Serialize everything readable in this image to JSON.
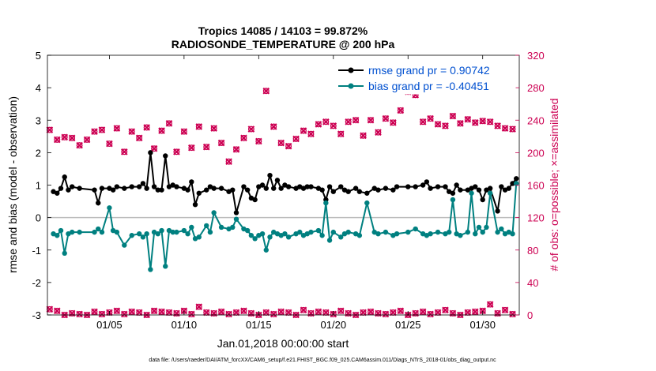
{
  "chart_data": {
    "type": "line",
    "title_line1": "Tropics 14085 / 14103 = 99.872%",
    "title_line2": "RADIOSONDE_TEMPERATURE @ 200 hPa",
    "xlabel": "Jan.01,2018 00:00:00 start",
    "ylabel_left": "rmse and bias (model - observation)",
    "ylabel_right": "# of obs: o=possible; ×=assimilated",
    "footnote": "data file: /Users/raeder/DAI/ATM_forcXX/CAM6_setup/f.e21.FHIST_BGC.f09_025.CAM6assim.011/Diags_NTrS_2018-01/obs_diag_output.nc",
    "xlim": [
      0.6,
      32.2
    ],
    "ylim_left": [
      -3,
      5
    ],
    "ylim_right": [
      0,
      320
    ],
    "x_ticks": [
      4.75,
      9.75,
      14.75,
      19.75,
      24.75,
      29.75
    ],
    "x_tick_labels": [
      "01/05",
      "01/10",
      "01/15",
      "01/20",
      "01/25",
      "01/30"
    ],
    "y_ticks_left": [
      -3,
      -2,
      -1,
      0,
      1,
      2,
      3,
      4,
      5
    ],
    "y_tick_labels_left": [
      "-3",
      "-2",
      "-1",
      "0",
      "1",
      "2",
      "3",
      "4",
      "5"
    ],
    "y_ticks_right": [
      0,
      40,
      80,
      120,
      160,
      200,
      240,
      280,
      320
    ],
    "y_tick_labels_right": [
      "0",
      "40",
      "80",
      "120",
      "160",
      "200",
      "240",
      "280",
      "320"
    ],
    "colors": {
      "rmse": "#000000",
      "bias": "#008080",
      "obs": "#cc0052",
      "zero_line": "#bbbbbb",
      "legend_text": "#0050d0"
    },
    "legend": [
      "rmse grand pr = 0.90742",
      "bias grand pr = -0.40451"
    ],
    "series": [
      {
        "name": "rmse grand pr = 0.90742",
        "x": [
          1.0,
          1.25,
          1.5,
          1.75,
          2.0,
          2.25,
          2.75,
          3.75,
          4.0,
          4.25,
          4.75,
          5.0,
          5.25,
          5.75,
          6.25,
          6.75,
          7.0,
          7.25,
          7.5,
          7.75,
          8.0,
          8.25,
          8.5,
          8.75,
          9.0,
          9.25,
          9.75,
          10.0,
          10.25,
          10.5,
          10.75,
          11.25,
          11.5,
          11.75,
          12.25,
          12.75,
          13.0,
          13.25,
          13.75,
          14.0,
          14.25,
          14.5,
          14.75,
          15.0,
          15.25,
          15.5,
          15.75,
          16.0,
          16.25,
          16.5,
          16.75,
          17.25,
          17.5,
          17.75,
          18.0,
          18.25,
          18.75,
          19.0,
          19.25,
          19.5,
          19.75,
          20.25,
          20.5,
          20.75,
          21.25,
          21.5,
          22.0,
          22.5,
          22.75,
          23.25,
          23.75,
          24.0,
          24.75,
          25.25,
          25.75,
          26.0,
          26.25,
          26.75,
          27.25,
          27.5,
          27.75,
          28.0,
          28.25,
          28.75,
          29.0,
          29.25,
          29.5,
          29.75,
          30.0,
          30.25,
          30.75,
          31.0,
          31.25,
          31.5,
          31.75,
          32.0
        ],
        "values": [
          0.8,
          0.75,
          0.9,
          1.25,
          0.85,
          0.95,
          0.9,
          0.85,
          0.45,
          0.9,
          0.9,
          0.85,
          0.95,
          0.9,
          0.95,
          0.95,
          1.05,
          0.9,
          2.0,
          0.95,
          0.85,
          0.85,
          1.9,
          0.95,
          1.0,
          0.95,
          0.9,
          0.85,
          1.1,
          0.4,
          0.75,
          0.85,
          0.95,
          0.9,
          0.9,
          0.8,
          0.85,
          0.15,
          0.95,
          0.85,
          0.6,
          0.55,
          0.95,
          1.0,
          0.9,
          1.3,
          0.9,
          1.15,
          0.9,
          1.0,
          0.95,
          0.9,
          0.95,
          0.9,
          0.95,
          0.95,
          0.9,
          0.85,
          0.55,
          0.95,
          0.8,
          0.95,
          0.85,
          0.8,
          0.9,
          0.8,
          0.75,
          0.9,
          0.85,
          0.9,
          0.85,
          0.95,
          0.95,
          0.95,
          1.0,
          1.1,
          0.9,
          0.95,
          0.95,
          0.8,
          0.75,
          1.0,
          0.85,
          0.85,
          0.9,
          0.95,
          0.85,
          0.55,
          0.85,
          0.9,
          0.2,
          0.95,
          0.85,
          0.9,
          1.05,
          1.2
        ]
      },
      {
        "name": "bias grand pr = -0.40451",
        "x": [
          1.0,
          1.25,
          1.5,
          1.75,
          2.0,
          2.25,
          2.75,
          3.75,
          4.0,
          4.25,
          4.75,
          5.0,
          5.25,
          5.75,
          6.25,
          6.75,
          7.0,
          7.25,
          7.5,
          7.75,
          8.0,
          8.25,
          8.5,
          8.75,
          9.0,
          9.25,
          9.75,
          10.0,
          10.25,
          10.5,
          10.75,
          11.25,
          11.5,
          11.75,
          12.25,
          12.75,
          13.0,
          13.25,
          13.75,
          14.0,
          14.25,
          14.5,
          14.75,
          15.0,
          15.25,
          15.5,
          15.75,
          16.0,
          16.25,
          16.5,
          16.75,
          17.25,
          17.5,
          17.75,
          18.0,
          18.25,
          18.75,
          19.0,
          19.25,
          19.5,
          19.75,
          20.25,
          20.5,
          20.75,
          21.25,
          21.5,
          22.0,
          22.5,
          22.75,
          23.25,
          23.75,
          24.0,
          24.75,
          25.25,
          25.75,
          26.0,
          26.25,
          26.75,
          27.25,
          27.5,
          27.75,
          28.0,
          28.25,
          28.75,
          29.0,
          29.25,
          29.5,
          29.75,
          30.0,
          30.25,
          30.75,
          31.0,
          31.25,
          31.5,
          31.75,
          32.0
        ],
        "values": [
          -0.5,
          -0.55,
          -0.4,
          -1.1,
          -0.5,
          -0.45,
          -0.45,
          -0.45,
          -0.35,
          -0.45,
          0.3,
          -0.4,
          -0.45,
          -0.85,
          -0.55,
          -0.5,
          -0.6,
          -0.5,
          -1.6,
          -0.45,
          -0.5,
          -0.4,
          -1.5,
          -0.4,
          -0.45,
          -0.45,
          -0.4,
          -0.5,
          -0.3,
          -0.65,
          -0.6,
          -0.25,
          -0.45,
          0.15,
          -0.3,
          -0.35,
          -0.3,
          -0.05,
          -0.35,
          -0.4,
          -0.55,
          -0.65,
          -0.55,
          -0.5,
          -1.0,
          -0.6,
          -0.45,
          -0.5,
          -0.55,
          -0.5,
          -0.6,
          -0.5,
          -0.45,
          -0.55,
          -0.5,
          -0.45,
          -0.4,
          -0.55,
          0.45,
          -0.7,
          -0.45,
          -0.6,
          -0.5,
          -0.45,
          -0.5,
          -0.55,
          0.45,
          -0.45,
          -0.5,
          -0.45,
          -0.55,
          -0.5,
          -0.45,
          -0.35,
          -0.5,
          -0.55,
          -0.5,
          -0.45,
          -0.5,
          -0.45,
          0.55,
          -0.5,
          -0.55,
          -0.45,
          0.75,
          -0.5,
          -0.3,
          -0.45,
          -0.3,
          0.75,
          -0.45,
          -0.35,
          -0.5,
          -0.45,
          -0.5,
          1.05
        ]
      },
      {
        "name": "obs possible / assimilated (upper row)",
        "x": [
          0.75,
          1.25,
          1.75,
          2.25,
          2.75,
          3.25,
          3.75,
          4.25,
          4.75,
          5.25,
          5.75,
          6.25,
          6.75,
          7.25,
          7.75,
          8.25,
          8.75,
          9.25,
          9.75,
          10.25,
          10.75,
          11.25,
          11.75,
          12.25,
          12.75,
          13.25,
          13.75,
          14.25,
          14.75,
          15.25,
          15.75,
          16.25,
          16.75,
          17.25,
          17.75,
          18.25,
          18.75,
          19.25,
          19.75,
          20.25,
          20.75,
          21.25,
          21.75,
          22.25,
          22.75,
          23.25,
          23.75,
          24.25,
          24.75,
          25.25,
          25.75,
          26.25,
          26.75,
          27.25,
          27.75,
          28.25,
          28.75,
          29.25,
          29.75,
          30.25,
          30.75,
          31.25,
          31.75
        ],
        "values": [
          228,
          216,
          219,
          218,
          209,
          216,
          226,
          228,
          211,
          230,
          201,
          226,
          218,
          231,
          205,
          227,
          236,
          201,
          226,
          206,
          232,
          207,
          230,
          212,
          189,
          204,
          218,
          229,
          214,
          276,
          232,
          212,
          208,
          217,
          227,
          223,
          235,
          238,
          233,
          223,
          238,
          240,
          221,
          240,
          225,
          242,
          237,
          252,
          275,
          271,
          238,
          242,
          235,
          233,
          245,
          236,
          241,
          237,
          239,
          238,
          233,
          230,
          229
        ]
      },
      {
        "name": "obs possible / assimilated (lower row)",
        "x": [
          0.75,
          1.25,
          1.75,
          2.25,
          2.75,
          3.25,
          3.75,
          4.25,
          4.75,
          5.25,
          5.75,
          6.25,
          6.75,
          7.25,
          7.75,
          8.25,
          8.75,
          9.25,
          9.75,
          10.25,
          10.75,
          11.25,
          11.75,
          12.25,
          12.75,
          13.25,
          13.75,
          14.25,
          14.75,
          15.25,
          15.75,
          16.25,
          16.75,
          17.25,
          17.75,
          18.25,
          18.75,
          19.25,
          19.75,
          20.25,
          20.75,
          21.25,
          21.75,
          22.25,
          22.75,
          23.25,
          23.75,
          24.25,
          24.75,
          25.25,
          25.75,
          26.25,
          26.75,
          27.25,
          27.75,
          28.25,
          28.75,
          29.25,
          29.75,
          30.25,
          30.75,
          31.25,
          31.75
        ],
        "values": [
          7,
          5,
          0,
          2,
          1,
          0,
          4,
          1,
          3,
          5,
          1,
          4,
          3,
          0,
          5,
          4,
          3,
          2,
          5,
          1,
          10,
          3,
          2,
          4,
          1,
          3,
          5,
          2,
          0,
          3,
          1,
          4,
          3,
          0,
          6,
          2,
          4,
          3,
          1,
          5,
          2,
          0,
          3,
          4,
          2,
          1,
          3,
          5,
          0,
          2,
          4,
          1,
          3,
          6,
          2,
          0,
          3,
          4,
          5,
          13,
          2,
          6,
          1
        ]
      }
    ]
  }
}
